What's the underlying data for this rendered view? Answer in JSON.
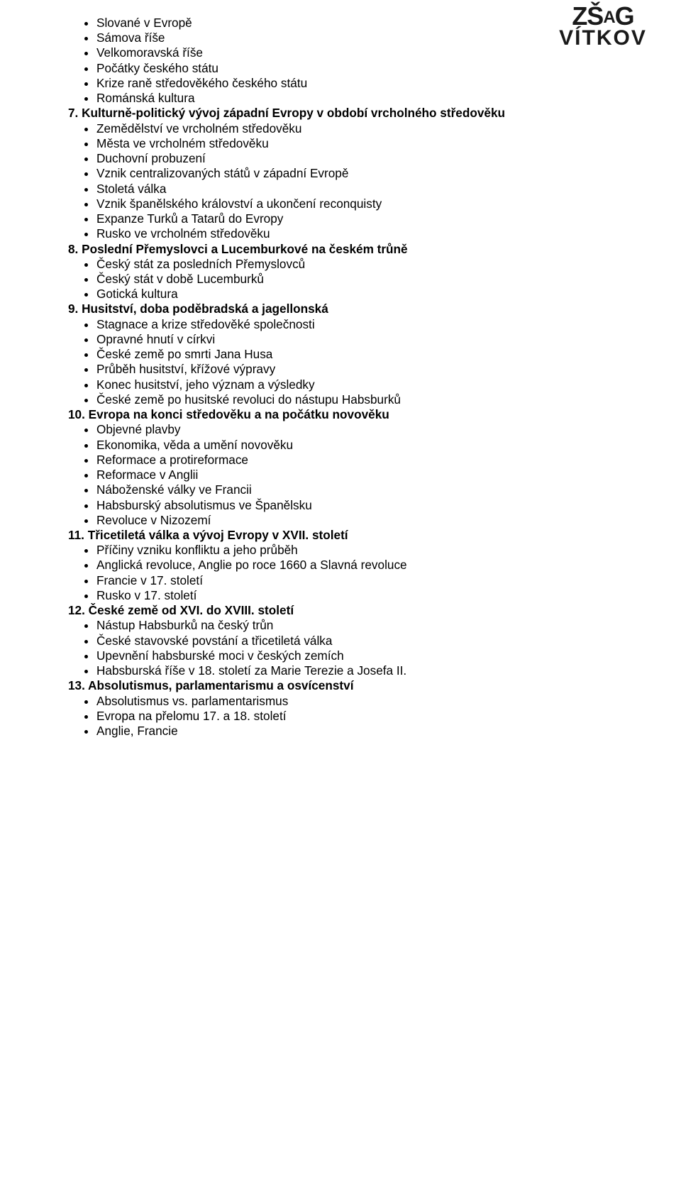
{
  "logo": {
    "line1_a": "ZŠ",
    "line1_b": "A",
    "line1_c": "G",
    "line2": "VÍTKOV"
  },
  "font_size": 17.2,
  "text_color": "#000000",
  "background_color": "#ffffff",
  "sections": [
    {
      "items": [
        "Slované v Evropě",
        "Sámova říše",
        "Velkomoravská říše",
        "Počátky českého státu",
        "Krize raně středověkého českého státu",
        "Románská kultura"
      ]
    },
    {
      "number": "7.",
      "title": "Kulturně-politický vývoj západní Evropy v období vrcholného středověku",
      "items": [
        "Zemědělství ve vrcholném středověku",
        "Města ve vrcholném středověku",
        "Duchovní probuzení",
        "Vznik centralizovaných států v západní Evropě",
        "Stoletá válka",
        "Vznik španělského království a ukončení reconquisty",
        "Expanze Turků a Tatarů do Evropy",
        "Rusko ve vrcholném středověku"
      ]
    },
    {
      "number": "8.",
      "title": "Poslední Přemyslovci a Lucemburkové na českém trůně",
      "items": [
        "Český stát za posledních Přemyslovců",
        "Český stát v době Lucemburků",
        "Gotická kultura"
      ]
    },
    {
      "number": "9.",
      "title": "Husitství, doba poděbradská a jagellonská",
      "items": [
        "Stagnace a krize středověké společnosti",
        "Opravné hnutí v církvi",
        "České země po smrti Jana Husa",
        "Průběh husitství, křížové výpravy",
        "Konec husitství, jeho význam a výsledky",
        "České země po husitské revoluci do nástupu Habsburků"
      ]
    },
    {
      "number": "10.",
      "title": "Evropa na konci středověku a na počátku novověku",
      "items": [
        "Objevné plavby",
        "Ekonomika, věda a umění novověku",
        "Reformace a protireformace",
        "Reformace v Anglii",
        "Náboženské války ve Francii",
        "Habsburský absolutismus ve Španělsku",
        "Revoluce v Nizozemí"
      ]
    },
    {
      "number": "11.",
      "title": "Třicetiletá válka a vývoj Evropy v XVII. století",
      "items": [
        "Příčiny vzniku konfliktu a jeho průběh",
        "Anglická revoluce, Anglie po roce 1660 a Slavná revoluce",
        "Francie v 17. století",
        "Rusko v 17. století"
      ]
    },
    {
      "number": "12.",
      "title": "České země od XVI. do XVIII. století",
      "items": [
        "Nástup Habsburků na český trůn",
        "České stavovské povstání a třicetiletá válka",
        "Upevnění habsburské moci v českých zemích",
        "Habsburská říše v 18. století za Marie Terezie a Josefa II."
      ]
    },
    {
      "number": "13.",
      "title": "Absolutismus, parlamentarismu a osvícenství",
      "items": [
        "Absolutismus vs. parlamentarismus",
        "Evropa na přelomu 17. a 18. století",
        "Anglie, Francie"
      ]
    }
  ]
}
